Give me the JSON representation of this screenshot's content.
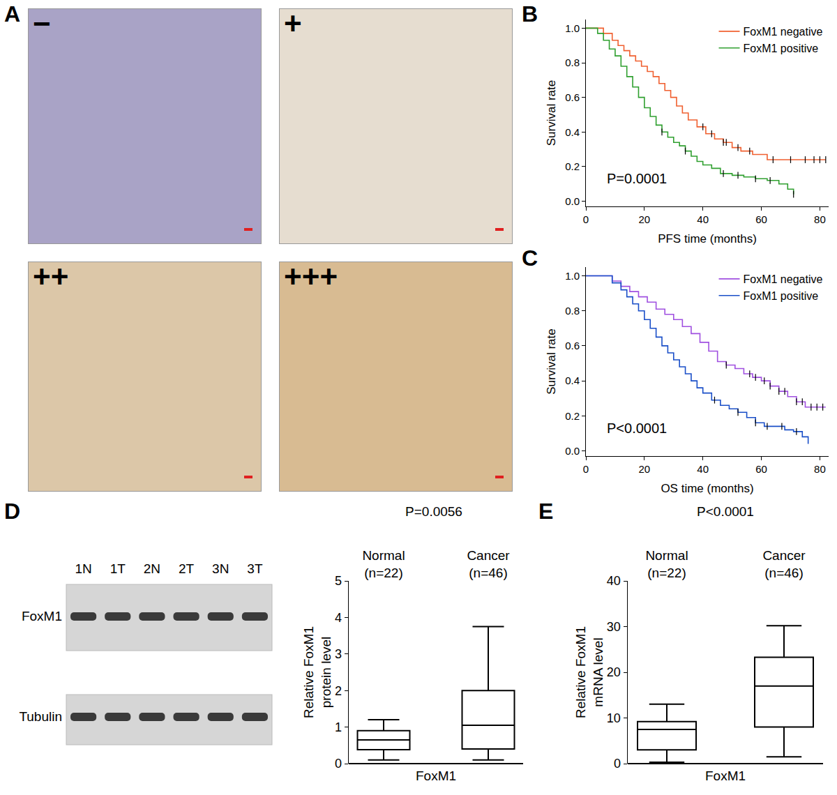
{
  "panel_labels": [
    "A",
    "B",
    "C",
    "D",
    "E"
  ],
  "ihc_grades": [
    "−",
    "+",
    "++",
    "+++"
  ],
  "blot": {
    "lanes": [
      "1N",
      "1T",
      "2N",
      "2T",
      "3N",
      "3T"
    ],
    "rows": [
      "FoxM1",
      "Tubulin"
    ]
  },
  "chart_data": [
    {
      "type": "line",
      "line_style": "step",
      "x_label": "PFS time (months)",
      "y_label": "Survival rate",
      "annotation": "P=0.0001",
      "legend": "upper right",
      "grid": false,
      "xlim": [
        0,
        83
      ],
      "xticks": [
        0,
        20,
        40,
        60,
        80
      ],
      "ylim": [
        -0.03,
        1.05
      ],
      "yticks": [
        {
          "value": 0,
          "label": "0.0"
        },
        {
          "value": 0.2,
          "label": "0.2"
        },
        {
          "value": 0.4,
          "label": "0.4"
        },
        {
          "value": 0.6,
          "label": "0.6"
        },
        {
          "value": 0.8,
          "label": "0.8"
        },
        {
          "value": 1,
          "label": "1.0"
        }
      ],
      "series": [
        {
          "name": "FoxM1 negative",
          "color": "#f06030",
          "x": [
            0,
            6,
            9,
            11,
            13,
            15,
            17,
            19,
            21,
            23,
            25,
            27,
            29,
            31,
            33,
            35,
            38,
            41,
            44,
            47,
            50,
            53,
            57,
            62,
            82
          ],
          "values": [
            1,
            0.97,
            0.93,
            0.9,
            0.87,
            0.84,
            0.81,
            0.78,
            0.75,
            0.72,
            0.68,
            0.64,
            0.6,
            0.55,
            0.51,
            0.47,
            0.43,
            0.39,
            0.36,
            0.34,
            0.31,
            0.29,
            0.27,
            0.24,
            0.24
          ],
          "censor_x": [
            40,
            43,
            47,
            48,
            52,
            56,
            64,
            70,
            75,
            78,
            80,
            82
          ],
          "censor_values": [
            0.43,
            0.39,
            0.34,
            0.34,
            0.31,
            0.29,
            0.24,
            0.24,
            0.24,
            0.24,
            0.24,
            0.24
          ]
        },
        {
          "name": "FoxM1 positive",
          "color": "#30a030",
          "x": [
            0,
            4,
            6,
            8,
            10,
            12,
            14,
            16,
            18,
            20,
            22,
            24,
            26,
            28,
            30,
            32,
            34,
            36,
            38,
            40,
            43,
            46,
            50,
            54,
            58,
            62,
            66,
            69,
            71
          ],
          "values": [
            1,
            0.97,
            0.93,
            0.88,
            0.84,
            0.78,
            0.72,
            0.66,
            0.6,
            0.54,
            0.49,
            0.44,
            0.4,
            0.37,
            0.34,
            0.32,
            0.29,
            0.26,
            0.23,
            0.21,
            0.19,
            0.16,
            0.15,
            0.14,
            0.13,
            0.12,
            0.1,
            0.07,
            0.04
          ],
          "censor_x": [
            26,
            34,
            47,
            52,
            58,
            63,
            71
          ],
          "censor_values": [
            0.4,
            0.29,
            0.16,
            0.15,
            0.13,
            0.12,
            0.04
          ]
        }
      ]
    },
    {
      "type": "line",
      "line_style": "step",
      "x_label": "OS time (months)",
      "y_label": "Survival rate",
      "annotation": "P<0.0001",
      "legend": "upper right",
      "grid": false,
      "xlim": [
        0,
        83
      ],
      "xticks": [
        0,
        20,
        40,
        60,
        80
      ],
      "ylim": [
        -0.03,
        1.05
      ],
      "yticks": [
        {
          "value": 0,
          "label": "0.0"
        },
        {
          "value": 0.2,
          "label": "0.2"
        },
        {
          "value": 0.4,
          "label": "0.4"
        },
        {
          "value": 0.6,
          "label": "0.6"
        },
        {
          "value": 0.8,
          "label": "0.8"
        },
        {
          "value": 1,
          "label": "1.0"
        }
      ],
      "series": [
        {
          "name": "FoxM1 negative",
          "color": "#a050e0",
          "x": [
            0,
            9,
            12,
            15,
            18,
            21,
            24,
            27,
            30,
            33,
            36,
            39,
            42,
            45,
            48,
            51,
            54,
            57,
            60,
            63,
            66,
            69,
            72,
            75,
            82
          ],
          "values": [
            1,
            0.97,
            0.94,
            0.91,
            0.88,
            0.85,
            0.81,
            0.78,
            0.75,
            0.71,
            0.67,
            0.62,
            0.57,
            0.51,
            0.49,
            0.47,
            0.44,
            0.42,
            0.4,
            0.37,
            0.34,
            0.31,
            0.28,
            0.25,
            0.25
          ],
          "censor_x": [
            48,
            56,
            58,
            61,
            63,
            66,
            68,
            72,
            74,
            77,
            79,
            81
          ],
          "censor_values": [
            0.49,
            0.44,
            0.42,
            0.4,
            0.37,
            0.34,
            0.34,
            0.28,
            0.28,
            0.25,
            0.25,
            0.25
          ]
        },
        {
          "name": "FoxM1 positive",
          "color": "#1a4fc8",
          "x": [
            0,
            9,
            12,
            14,
            16,
            18,
            20,
            22,
            24,
            26,
            28,
            30,
            32,
            34,
            36,
            38,
            40,
            43,
            46,
            49,
            52,
            55,
            58,
            61,
            65,
            68,
            71,
            74,
            76
          ],
          "values": [
            1,
            0.96,
            0.92,
            0.88,
            0.84,
            0.8,
            0.75,
            0.7,
            0.65,
            0.6,
            0.56,
            0.52,
            0.48,
            0.44,
            0.4,
            0.36,
            0.33,
            0.29,
            0.26,
            0.24,
            0.22,
            0.19,
            0.16,
            0.14,
            0.14,
            0.12,
            0.11,
            0.08,
            0.04
          ],
          "censor_x": [
            44,
            52,
            58,
            62,
            67,
            72
          ],
          "censor_values": [
            0.29,
            0.22,
            0.16,
            0.14,
            0.14,
            0.11
          ]
        }
      ]
    },
    {
      "type": "box",
      "title": "P=0.0056",
      "categories": [
        "Normal\n(n=22)",
        "Cancer\n(n=46)"
      ],
      "x_label": "FoxM1",
      "y_label": "Relative FoxM1\nprotein level",
      "grid": false,
      "ylim": [
        0,
        5
      ],
      "yticks": [
        0,
        1,
        2,
        3,
        4,
        5
      ],
      "color": "#000000",
      "stats": {
        "min": [
          0.1,
          0.1
        ],
        "q1": [
          0.38,
          0.4
        ],
        "median": [
          0.65,
          1.05
        ],
        "q3": [
          0.9,
          2.0
        ],
        "max": [
          1.2,
          3.75
        ]
      }
    },
    {
      "type": "box",
      "title": "P<0.0001",
      "categories": [
        "Normal\n(n=22)",
        "Cancer\n(n=46)"
      ],
      "x_label": "FoxM1",
      "y_label": "Relative FoxM1\nmRNA level",
      "grid": false,
      "ylim": [
        0,
        40
      ],
      "yticks": [
        0,
        10,
        20,
        30,
        40
      ],
      "color": "#000000",
      "stats": {
        "min": [
          0.3,
          1.5
        ],
        "q1": [
          3,
          8
        ],
        "median": [
          7.5,
          17
        ],
        "q3": [
          9.2,
          23.3
        ],
        "max": [
          13,
          30.2
        ]
      }
    }
  ]
}
